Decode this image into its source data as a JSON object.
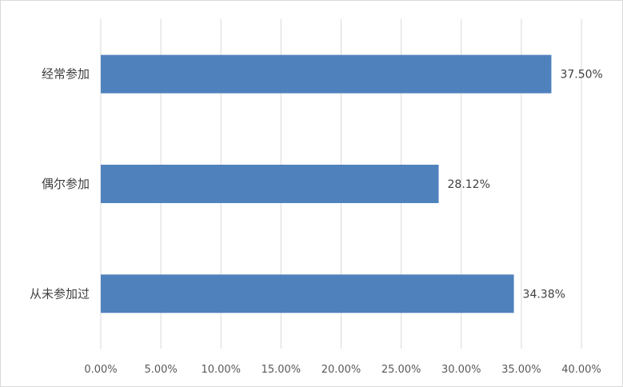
{
  "chart_data": {
    "type": "bar",
    "orientation": "horizontal",
    "categories": [
      "经常参加",
      "偶尔参加",
      "从未参加过"
    ],
    "values": [
      37.5,
      28.12,
      34.38
    ],
    "data_labels": [
      "37.50%",
      "28.12%",
      "34.38%"
    ],
    "x_ticks": [
      "0.00%",
      "5.00%",
      "10.00%",
      "15.00%",
      "20.00%",
      "25.00%",
      "30.00%",
      "35.00%",
      "40.00%"
    ],
    "xlim": [
      0,
      40
    ],
    "grid": true,
    "legend": "none",
    "bar_color": "#4f81bd",
    "grid_color": "#d9d9d9"
  }
}
